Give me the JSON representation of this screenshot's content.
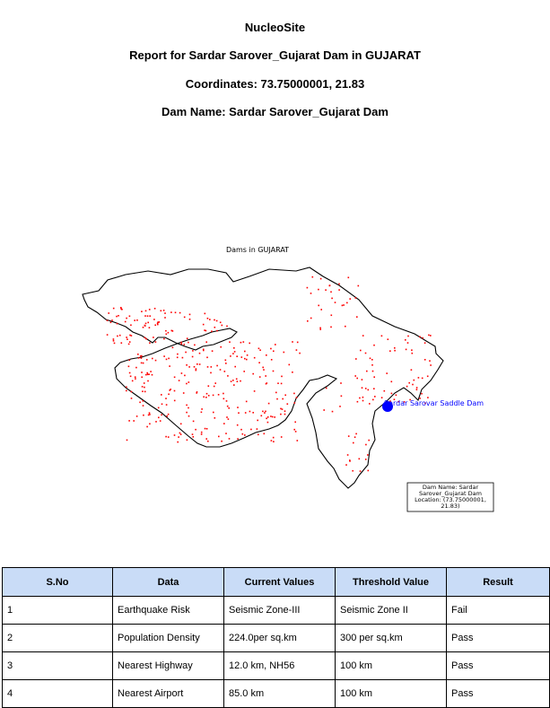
{
  "header": {
    "brand": "NucleoSite",
    "report_title": "Report for Sardar Sarover_Gujarat Dam in GUJARAT",
    "coordinates": "Coordinates: 73.75000001, 21.83",
    "dam_name": "Dam Name: Sardar Sarover_Gujarat Dam"
  },
  "map": {
    "title": "Dams in GUJARAT",
    "highlight_label": "Sardar Sarovar Saddle Dam",
    "info_box": [
      "Dam Name: Sardar",
      "Sarover_Gujarat Dam",
      "Location: (73.75000001,",
      "21.83)"
    ],
    "marker_color": "#0000ff",
    "point_color": "#ff0000",
    "label_color": "#0000ff"
  },
  "table": {
    "headers": [
      "S.No",
      "Data",
      "Current Values",
      "Threshold Value",
      "Result"
    ],
    "rows": [
      [
        "1",
        "Earthquake Risk",
        "Seismic Zone-III",
        "Seismic Zone II",
        "Fail"
      ],
      [
        "2",
        "Population Density",
        "224.0per sq.km",
        "300 per sq.km",
        "Pass"
      ],
      [
        "3",
        "Nearest Highway",
        "12.0 km, NH56",
        "100 km",
        "Pass"
      ],
      [
        "4",
        "Nearest Airport",
        "85.0 km",
        "100 km",
        "Pass"
      ]
    ]
  }
}
